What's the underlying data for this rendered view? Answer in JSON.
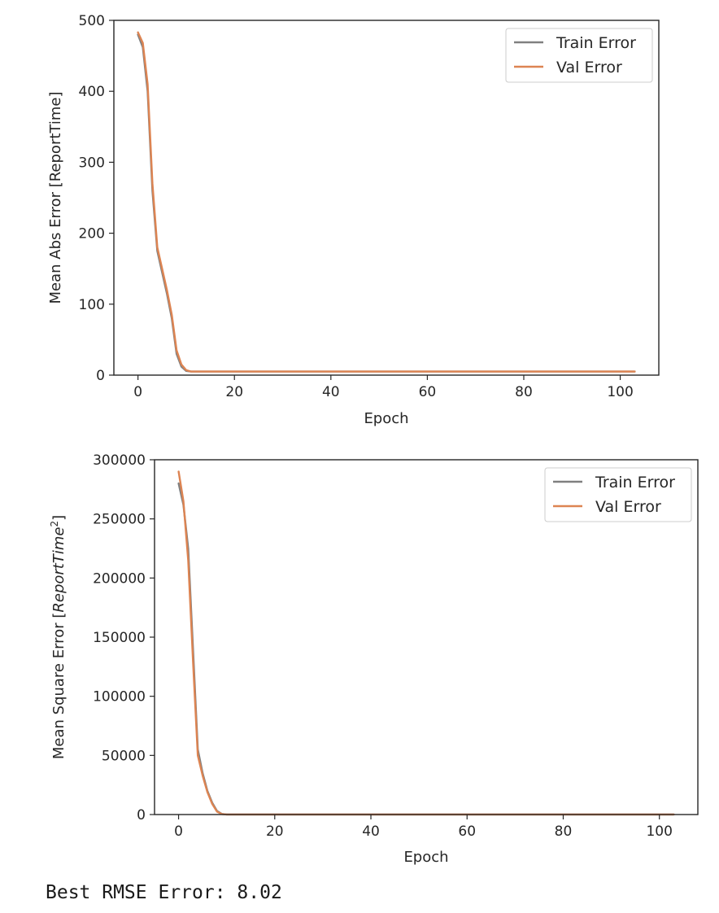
{
  "chart_data": [
    {
      "type": "line",
      "title": "",
      "xlabel": "Epoch",
      "ylabel": "Mean Abs Error [ReportTime]",
      "xlim": [
        -5,
        108
      ],
      "ylim": [
        0,
        500
      ],
      "xticks": [
        0,
        20,
        40,
        60,
        80,
        100
      ],
      "yticks": [
        0,
        100,
        200,
        300,
        400,
        500
      ],
      "xtick_labels": [
        "0",
        "20",
        "40",
        "60",
        "80",
        "100"
      ],
      "ytick_labels": [
        "0",
        "100",
        "200",
        "300",
        "400",
        "500"
      ],
      "grid": false,
      "legend": "top-right",
      "series": [
        {
          "name": "Train Error",
          "color": "#808080",
          "x": [
            0,
            1,
            2,
            3,
            4,
            5,
            6,
            7,
            8,
            9,
            10,
            11,
            12,
            15,
            20,
            30,
            40,
            50,
            60,
            70,
            80,
            90,
            100,
            103
          ],
          "y": [
            480,
            462,
            400,
            260,
            175,
            145,
            115,
            80,
            30,
            12,
            6,
            5,
            5,
            5,
            5,
            5,
            5,
            5,
            5,
            5,
            5,
            5,
            5,
            5
          ]
        },
        {
          "name": "Val Error",
          "color": "#dd8452",
          "x": [
            0,
            1,
            2,
            3,
            4,
            5,
            6,
            7,
            8,
            9,
            10,
            11,
            12,
            15,
            20,
            30,
            40,
            50,
            60,
            70,
            80,
            90,
            100,
            103
          ],
          "y": [
            483,
            468,
            410,
            270,
            180,
            150,
            120,
            85,
            35,
            15,
            7,
            5,
            5,
            5,
            5,
            5,
            5,
            5,
            5,
            5,
            5,
            5,
            5,
            5
          ]
        }
      ]
    },
    {
      "type": "line",
      "title": "",
      "xlabel": "Epoch",
      "ylabel": "Mean Square Error [$ReportTime^2$]",
      "ylabel_parts": {
        "prefix": "Mean Square Error [",
        "var": "ReportTime",
        "sup": "2",
        "suffix": "]"
      },
      "xlim": [
        -5,
        108
      ],
      "ylim": [
        0,
        300000
      ],
      "xticks": [
        0,
        20,
        40,
        60,
        80,
        100
      ],
      "yticks": [
        0,
        50000,
        100000,
        150000,
        200000,
        250000,
        300000
      ],
      "xtick_labels": [
        "0",
        "20",
        "40",
        "60",
        "80",
        "100"
      ],
      "ytick_labels": [
        "0",
        "50000",
        "100000",
        "150000",
        "200000",
        "250000",
        "300000"
      ],
      "grid": false,
      "legend": "top-right",
      "series": [
        {
          "name": "Train Error",
          "color": "#808080",
          "x": [
            0,
            1,
            2,
            3,
            4,
            5,
            6,
            7,
            8,
            9,
            10,
            12,
            15,
            20,
            30,
            40,
            50,
            60,
            70,
            80,
            90,
            100,
            103
          ],
          "y": [
            280000,
            262000,
            225000,
            140000,
            55000,
            35000,
            20000,
            10000,
            3000,
            500,
            100,
            50,
            50,
            50,
            50,
            50,
            50,
            50,
            50,
            50,
            50,
            50,
            50
          ]
        },
        {
          "name": "Val Error",
          "color": "#dd8452",
          "x": [
            0,
            1,
            2,
            3,
            4,
            5,
            6,
            7,
            8,
            9,
            10,
            12,
            15,
            20,
            30,
            40,
            50,
            60,
            70,
            80,
            90,
            100,
            103
          ],
          "y": [
            290000,
            265000,
            215000,
            130000,
            50000,
            33000,
            19000,
            9000,
            2500,
            400,
            100,
            50,
            50,
            50,
            50,
            50,
            50,
            50,
            50,
            50,
            50,
            50,
            50
          ]
        }
      ]
    }
  ],
  "result_text": "Best RMSE Error: 8.02"
}
